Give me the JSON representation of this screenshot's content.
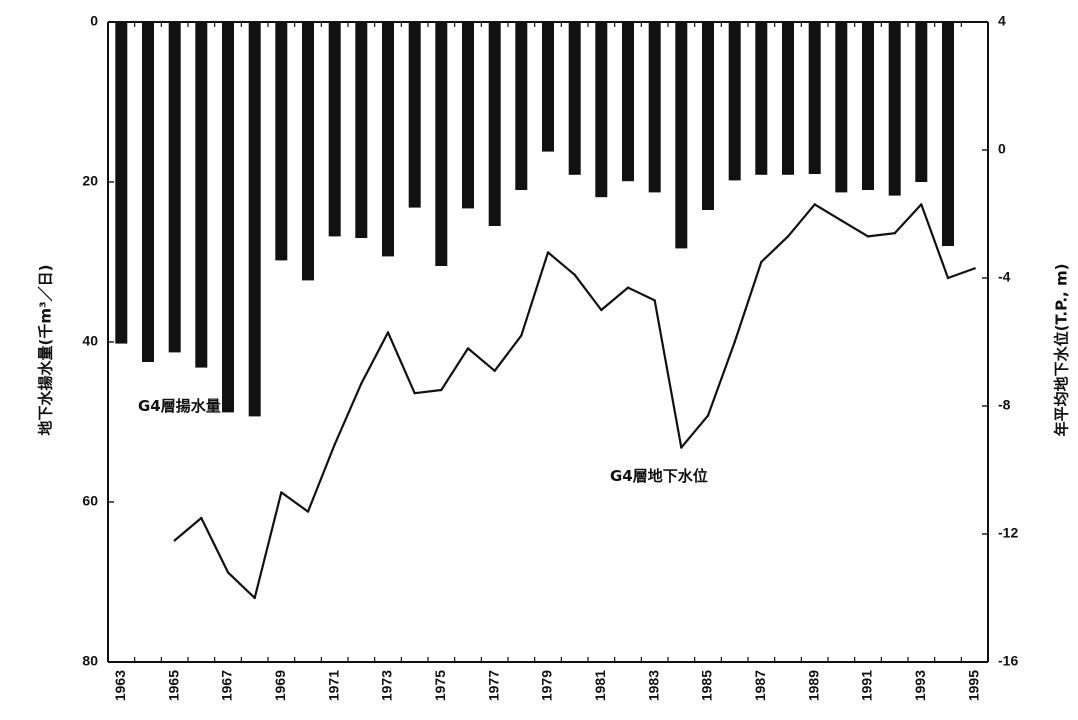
{
  "chart_data": {
    "type": "bar+line",
    "categories": [
      1963,
      1964,
      1965,
      1966,
      1967,
      1968,
      1969,
      1970,
      1971,
      1972,
      1973,
      1974,
      1975,
      1976,
      1977,
      1978,
      1979,
      1980,
      1981,
      1982,
      1983,
      1984,
      1985,
      1986,
      1987,
      1988,
      1989,
      1990,
      1991,
      1992,
      1993,
      1994,
      1995
    ],
    "x_tick_labels": [
      "1963",
      "1965",
      "1967",
      "1969",
      "1971",
      "1973",
      "1975",
      "1977",
      "1979",
      "1981",
      "1983",
      "1985",
      "1987",
      "1989",
      "1991",
      "1993",
      "1995"
    ],
    "bars": {
      "label": "G4層揚水量",
      "axis": "left",
      "values": [
        40.2,
        42.5,
        41.3,
        43.2,
        48.8,
        49.3,
        29.8,
        32.3,
        26.8,
        27.0,
        29.3,
        23.2,
        30.5,
        23.3,
        25.5,
        21.0,
        16.2,
        19.1,
        21.9,
        19.9,
        21.3,
        28.3,
        23.5,
        19.8,
        19.1,
        19.1,
        19.0,
        21.3,
        21.0,
        21.7,
        20.0,
        28.0,
        null
      ]
    },
    "line": {
      "label": "G4層地下水位",
      "axis": "right",
      "x": [
        1965,
        1966,
        1967,
        1968,
        1969,
        1970,
        1971,
        1972,
        1973,
        1974,
        1975,
        1976,
        1977,
        1978,
        1979,
        1980,
        1981,
        1982,
        1983,
        1984,
        1985,
        1986,
        1987,
        1988,
        1989,
        1990,
        1991,
        1992,
        1993,
        1994,
        1995
      ],
      "values": [
        -12.2,
        -11.5,
        -13.2,
        -14.0,
        -10.7,
        -11.3,
        -9.2,
        -7.3,
        -5.7,
        -7.6,
        -7.5,
        -6.2,
        -6.9,
        -5.8,
        -3.2,
        -3.9,
        -5.0,
        -4.3,
        -4.7,
        -9.3,
        -8.3,
        -6.0,
        -3.5,
        -2.7,
        -1.7,
        -2.2,
        -2.7,
        -2.6,
        -1.7,
        -4.0,
        -3.7
      ]
    },
    "left_axis": {
      "label": "地下水揚水量(千m³／日)",
      "inverted": true,
      "ylim": [
        0,
        80
      ],
      "ticks": [
        "0",
        "20",
        "40",
        "60",
        "80"
      ]
    },
    "right_axis": {
      "label": "年平均地下水位(T.P., m)",
      "ylim": [
        -16,
        4
      ],
      "ticks": [
        "4",
        "0",
        "-4",
        "-8",
        "-12",
        "-16"
      ]
    },
    "colors": {
      "bar": "#111111",
      "line": "#111111"
    },
    "grid": false
  }
}
